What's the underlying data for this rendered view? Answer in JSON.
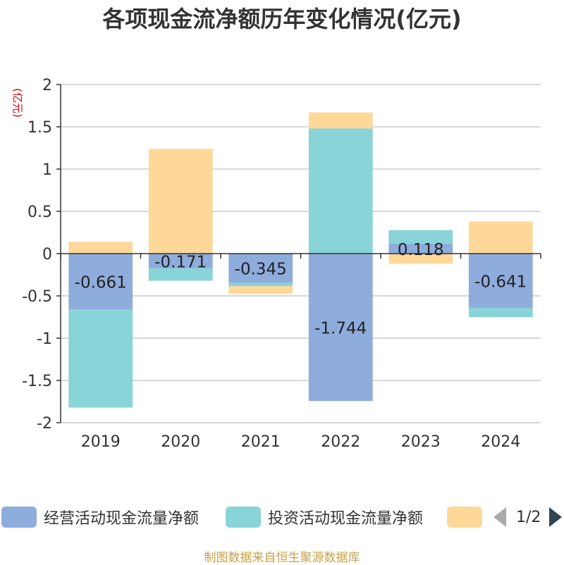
{
  "title": "各项现金流净额历年变化情况(亿元)",
  "source": "制图数据来自恒生聚源数据库",
  "pager": {
    "text": "1/2"
  },
  "chart_data": {
    "type": "bar",
    "stacked": true,
    "ylabel": "(亿元)",
    "ylim": [
      -2,
      2
    ],
    "yticks": [
      2,
      1.5,
      1,
      0.5,
      0,
      -0.5,
      -1,
      -1.5,
      -2
    ],
    "ytick_labels": [
      "2",
      "1.5",
      "1",
      "0.5",
      "0",
      "-0.5",
      "-1",
      "-1.5",
      "-2"
    ],
    "categories": [
      "2019",
      "2020",
      "2021",
      "2022",
      "2023",
      "2024"
    ],
    "grid": true,
    "legend_position": "bottom",
    "series": [
      {
        "name": "经营活动现金流量净额",
        "color": "#8eacdc",
        "values": [
          -0.661,
          -0.171,
          -0.345,
          -1.744,
          0.118,
          -0.641
        ],
        "labels": [
          "-0.661",
          "-0.171",
          "-0.345",
          "-1.744",
          "0.118",
          "-0.641"
        ]
      },
      {
        "name": "投资活动现金流量净额",
        "color": "#88d4d8",
        "values": [
          -1.16,
          -0.15,
          -0.04,
          1.48,
          0.16,
          -0.11
        ]
      },
      {
        "name": "",
        "color": "#fed898",
        "values": [
          0.14,
          1.24,
          -0.09,
          0.19,
          -0.12,
          0.38
        ]
      }
    ]
  }
}
